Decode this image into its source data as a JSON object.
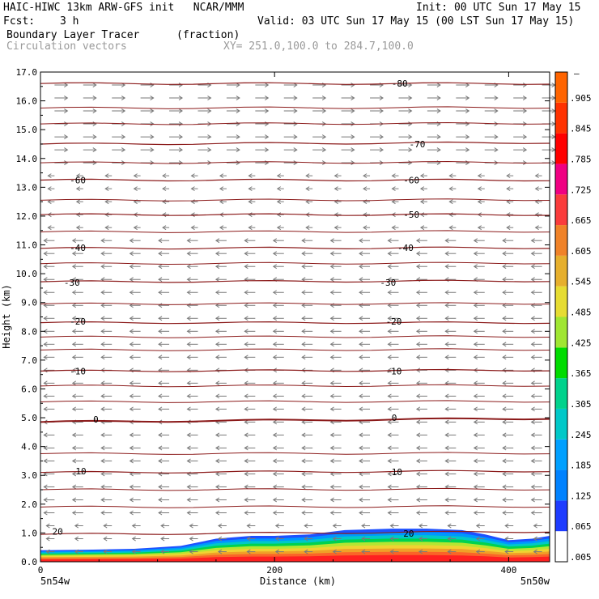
{
  "header": {
    "model_line": "HAIC-HIWC 13km ARW-GFS init   NCAR/MMM",
    "init": "Init: 00 UTC Sun 17 May 15",
    "fcst_label": "Fcst:",
    "fcst_value": "3 h",
    "valid": "Valid: 03 UTC Sun 17 May 15 (00 LST Sun 17 May 15)",
    "field1_name": "Boundary Layer Tracer",
    "field1_units": "(fraction)",
    "field2_name": "Circulation vectors",
    "xy_range": "XY= 251.0,100.0 to 284.7,100.0"
  },
  "chart_data": {
    "type": "heatmap",
    "ylabel": "Height (km)",
    "xlabel": "Distance (km)",
    "xlim": [
      0,
      435
    ],
    "ylim": [
      0,
      17
    ],
    "x_ticks": [
      0,
      200,
      400
    ],
    "x_tick_labels": [
      "0",
      "200",
      "400"
    ],
    "y_ticks": [
      0,
      1,
      2,
      3,
      4,
      5,
      6,
      7,
      8,
      9,
      10,
      11,
      12,
      13,
      14,
      15,
      16,
      17
    ],
    "y_tick_labels": [
      "0.0",
      "1.0",
      "2.0",
      "3.0",
      "4.0",
      "5.0",
      "6.0",
      "7.0",
      "8.0",
      "9.0",
      "10.0",
      "11.0",
      "12.0",
      "13.0",
      "14.0",
      "15.0",
      "16.0",
      "17.0"
    ],
    "x_end_labels": [
      "5n54w",
      "5n50w"
    ],
    "colorbar": {
      "top_label": "–",
      "labels": [
        ".905",
        ".845",
        ".785",
        ".725",
        ".665",
        ".605",
        ".545",
        ".485",
        ".425",
        ".365",
        ".305",
        ".245",
        ".185",
        ".125",
        ".065",
        ".005"
      ],
      "colors": [
        "#ffffff",
        "#1e3cff",
        "#0082ff",
        "#00a0ff",
        "#00c8c8",
        "#00d28c",
        "#00dc00",
        "#a0e632",
        "#e6dc32",
        "#e6af2d",
        "#f08228",
        "#fa3c3c",
        "#f00082",
        "#ff0000",
        "#ff3200",
        "#ff6400"
      ]
    },
    "tracer_top_profile": {
      "x": [
        0,
        40,
        80,
        120,
        150,
        180,
        200,
        230,
        260,
        300,
        330,
        360,
        380,
        400,
        420,
        435
      ],
      "top": [
        0.4,
        0.42,
        0.45,
        0.55,
        0.8,
        0.9,
        0.9,
        0.95,
        1.1,
        1.15,
        1.15,
        1.1,
        0.95,
        0.75,
        0.8,
        0.9
      ]
    },
    "temperature_contours": [
      {
        "value": 20,
        "label": "20",
        "heights": [
          0.95,
          1.05
        ]
      },
      {
        "value": 10,
        "label": "10",
        "heights": [
          3.1,
          3.15
        ]
      },
      {
        "value": 0,
        "label": "0",
        "heights": [
          4.85,
          4.98
        ]
      },
      {
        "value": -10,
        "label": "-10",
        "heights": [
          6.62,
          6.65
        ]
      },
      {
        "value": -20,
        "label": "-20",
        "heights": [
          8.3,
          8.3
        ]
      },
      {
        "value": -30,
        "label": "-30",
        "heights": [
          9.72,
          9.75
        ]
      },
      {
        "value": -40,
        "label": "-40",
        "heights": [
          10.88,
          10.9
        ]
      },
      {
        "value": -50,
        "label": "-50",
        "heights": [
          12.05,
          12.05
        ]
      },
      {
        "value": -60,
        "label": "-60",
        "heights": [
          13.25,
          13.25
        ]
      },
      {
        "value": -70,
        "label": "-70",
        "heights": [
          14.5,
          14.55
        ]
      },
      {
        "value": -80,
        "label": "-80",
        "heights": [
          16.6,
          16.6
        ]
      }
    ],
    "extra_contour_heights": [
      1.9,
      2.5,
      3.75,
      5.55,
      6.1,
      7.35,
      7.8,
      8.95,
      10.35,
      11.45,
      12.55,
      13.85,
      15.2,
      15.75
    ],
    "contour_labels": [
      {
        "text": "20",
        "x": 10,
        "y": 1.05
      },
      {
        "text": "20",
        "x": 310,
        "y": 0.98
      },
      {
        "text": "10",
        "x": 30,
        "y": 3.15
      },
      {
        "text": "10",
        "x": 300,
        "y": 3.12
      },
      {
        "text": "0",
        "x": 45,
        "y": 4.95
      },
      {
        "text": "0",
        "x": 300,
        "y": 5.0
      },
      {
        "text": "-10",
        "x": 25,
        "y": 6.62
      },
      {
        "text": "-10",
        "x": 295,
        "y": 6.62
      },
      {
        "text": "-20",
        "x": 25,
        "y": 8.35
      },
      {
        "text": "-20",
        "x": 295,
        "y": 8.35
      },
      {
        "text": "-30",
        "x": 20,
        "y": 9.7
      },
      {
        "text": "-30",
        "x": 290,
        "y": 9.7
      },
      {
        "text": "-40",
        "x": 25,
        "y": 10.9
      },
      {
        "text": "-40",
        "x": 305,
        "y": 10.9
      },
      {
        "text": "-50",
        "x": 310,
        "y": 12.05
      },
      {
        "text": "-60",
        "x": 25,
        "y": 13.25
      },
      {
        "text": "-60",
        "x": 310,
        "y": 13.25
      },
      {
        "text": "-70",
        "x": 315,
        "y": 14.5
      },
      {
        "text": "-80",
        "x": 300,
        "y": 16.6
      }
    ],
    "wind_vectors_description_levels": [
      0.5,
      16.5
    ]
  }
}
